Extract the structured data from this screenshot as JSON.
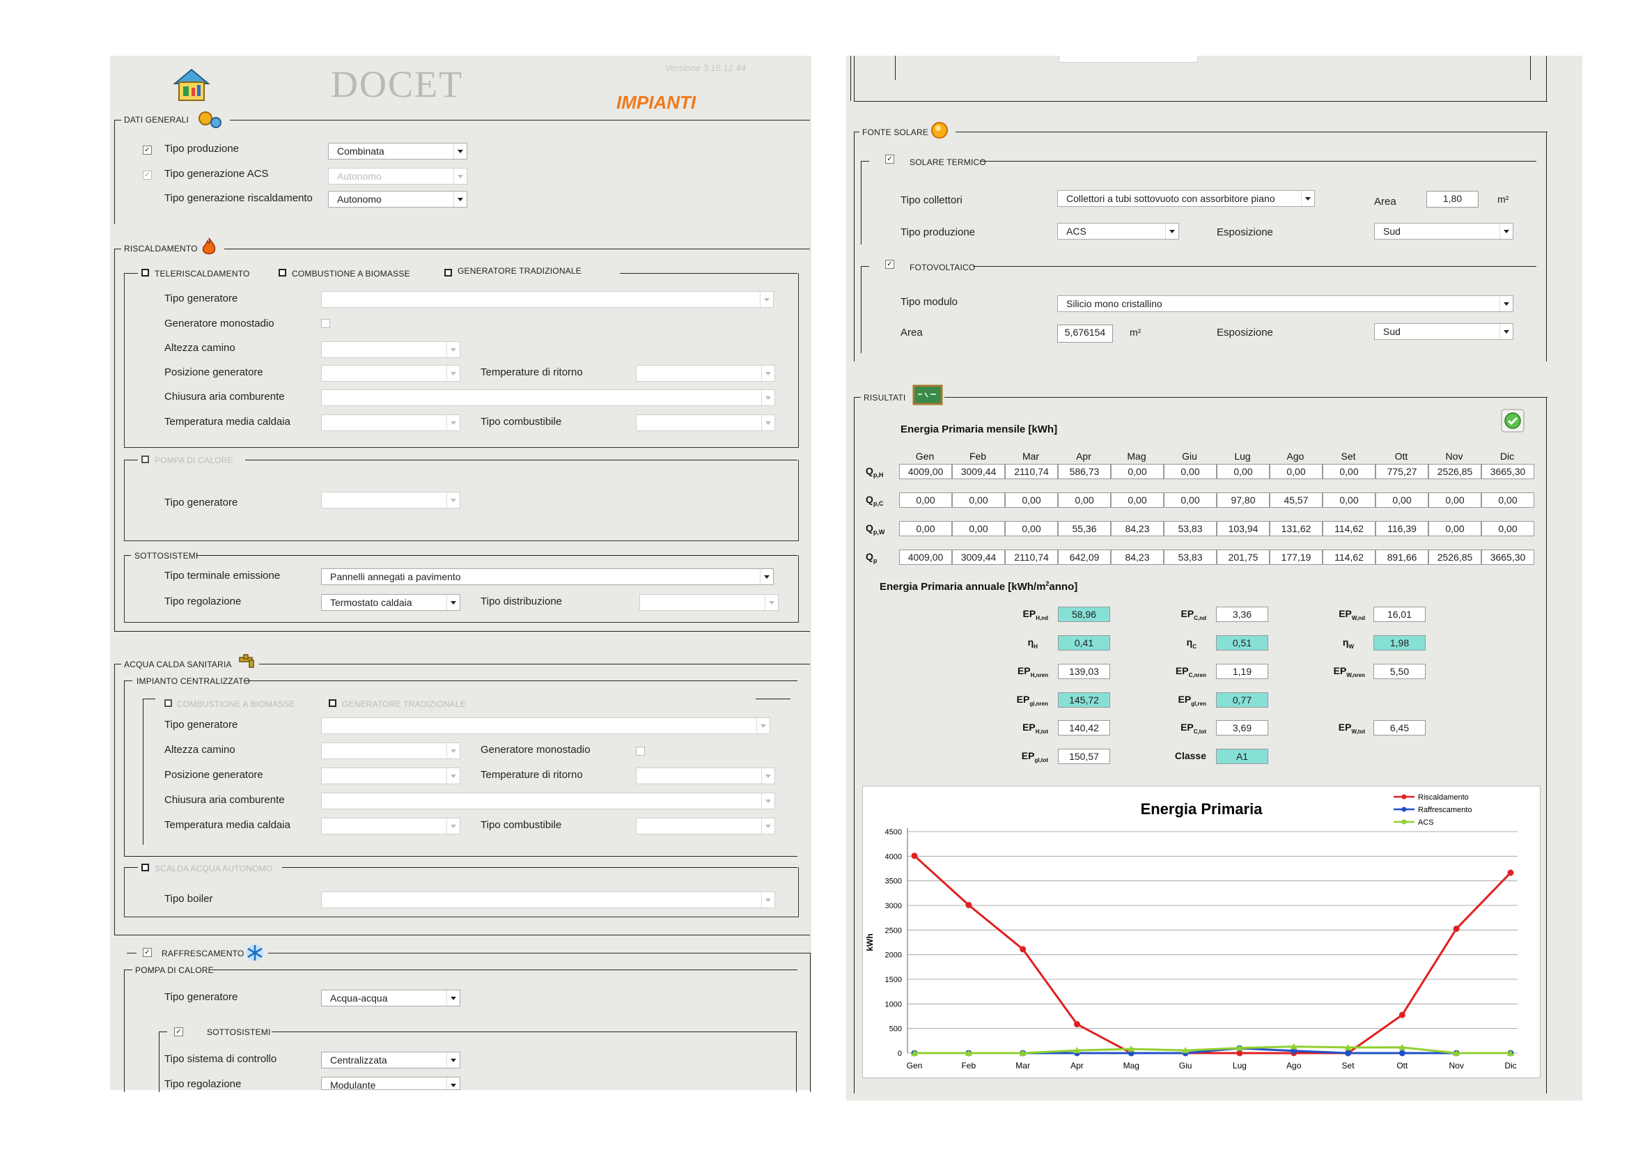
{
  "header": {
    "app_title": "DOCET",
    "version": "Versione 3.15.12.44",
    "section_title": "IMPIANTI"
  },
  "dati_generali": {
    "title": "DATI GENERALI",
    "tipo_produzione": {
      "label": "Tipo produzione",
      "value": "Combinata",
      "checked": true
    },
    "tipo_generazione_acs": {
      "label": "Tipo generazione ACS",
      "value": "Autonomo",
      "checked": true
    },
    "tipo_generazione_risc": {
      "label": "Tipo generazione riscaldamento",
      "value": "Autonomo"
    }
  },
  "riscaldamento": {
    "title": "RISCALDAMENTO",
    "tabs": [
      "TELERISCALDAMENTO",
      "COMBUSTIONE A BIOMASSE",
      "GENERATORE TRADIZIONALE"
    ],
    "tipo_generatore": "Tipo generatore",
    "generatore_monostadio": "Generatore monostadio",
    "altezza_camino": "Altezza camino",
    "posizione_generatore": "Posizione generatore",
    "temperature_ritorno": "Temperature di ritorno",
    "chiusura_aria": "Chiusura aria comburente",
    "temperatura_media": "Temperatura media caldaia",
    "tipo_combustibile": "Tipo combustibile",
    "pompa_calore": "POMPA DI CALORE",
    "pompa_tipo_generatore": "Tipo generatore",
    "sottosistemi": "SOTTOSISTEMI",
    "tipo_terminale": {
      "label": "Tipo terminale emissione",
      "value": "Pannelli annegati a pavimento"
    },
    "tipo_regolazione": {
      "label": "Tipo regolazione",
      "value": "Termostato caldaia"
    },
    "tipo_distribuzione": "Tipo distribuzione"
  },
  "acs": {
    "title": "ACQUA CALDA SANITARIA",
    "impianto": "IMPIANTO CENTRALIZZATO",
    "tabs": [
      "COMBUSTIONE A BIOMASSE",
      "GENERATORE TRADIZIONALE"
    ],
    "tipo_generatore": "Tipo generatore",
    "altezza_camino": "Altezza camino",
    "generatore_monostadio": "Generatore monostadio",
    "posizione_generatore": "Posizione generatore",
    "temperature_ritorno": "Temperature di ritorno",
    "chiusura_aria": "Chiusura aria comburente",
    "temperatura_media": "Temperatura media caldaia",
    "tipo_combustibile": "Tipo combustibile",
    "scalda_acqua": "SCALDA ACQUA AUTONOMO",
    "tipo_boiler": "Tipo boiler"
  },
  "raffrescamento": {
    "title": "RAFFRESCAMENTO",
    "pompa": "POMPA DI CALORE",
    "tipo_generatore": {
      "label": "Tipo generatore",
      "value": "Acqua-acqua"
    },
    "sottosistemi": "SOTTOSISTEMI",
    "tipo_sistema_controllo": {
      "label": "Tipo sistema di controllo",
      "value": "Centralizzata"
    },
    "tipo_regolazione": {
      "label": "Tipo regolazione",
      "value": "Modulante"
    }
  },
  "fonte_solare": {
    "title": "FONTE SOLARE",
    "solare_termico": "SOLARE TERMICO",
    "tipo_collettori": {
      "label": "Tipo collettori",
      "value": "Collettori a tubi sottovuoto con assorbitore piano"
    },
    "area_label": "Area",
    "area_value": "1,80",
    "unit_m2": "m²",
    "tipo_produzione": {
      "label": "Tipo produzione",
      "value": "ACS"
    },
    "esposizione_label": "Esposizione",
    "esposizione_value": "Sud",
    "fotovoltaico": "FOTOVOLTAICO",
    "tipo_modulo": {
      "label": "Tipo modulo",
      "value": "Silicio mono cristallino"
    },
    "pv_area_label": "Area",
    "pv_area_value": "5,676154",
    "pv_esposizione_label": "Esposizione",
    "pv_esposizione_value": "Sud"
  },
  "risultati": {
    "title": "RISULTATI",
    "mensile_title": "Energia Primaria mensile [kWh]",
    "months": [
      "Gen",
      "Feb",
      "Mar",
      "Apr",
      "Mag",
      "Giu",
      "Lug",
      "Ago",
      "Set",
      "Ott",
      "Nov",
      "Dic"
    ],
    "rows": [
      {
        "label": "Q",
        "sub": "p,H",
        "values": [
          "4009,00",
          "3009,44",
          "2110,74",
          "586,73",
          "0,00",
          "0,00",
          "0,00",
          "0,00",
          "0,00",
          "775,27",
          "2526,85",
          "3665,30"
        ]
      },
      {
        "label": "Q",
        "sub": "p,C",
        "values": [
          "0,00",
          "0,00",
          "0,00",
          "0,00",
          "0,00",
          "0,00",
          "97,80",
          "45,57",
          "0,00",
          "0,00",
          "0,00",
          "0,00"
        ]
      },
      {
        "label": "Q",
        "sub": "p,W",
        "values": [
          "0,00",
          "0,00",
          "0,00",
          "55,36",
          "84,23",
          "53,83",
          "103,94",
          "131,62",
          "114,62",
          "116,39",
          "0,00",
          "0,00"
        ]
      },
      {
        "label": "Q",
        "sub": "p",
        "values": [
          "4009,00",
          "3009,44",
          "2110,74",
          "642,09",
          "84,23",
          "53,83",
          "201,75",
          "177,19",
          "114,62",
          "891,66",
          "2526,85",
          "3665,30"
        ]
      }
    ],
    "annuale_title": "Energia Primaria annuale [kWh/m²anno]",
    "ep": {
      "EPH_nd": "58,96",
      "EPC_nd": "3,36",
      "EPW_nd": "16,01",
      "etaH": "0,41",
      "etaC": "0,51",
      "etaW": "1,98",
      "EPH_nren": "139,03",
      "EPC_nren": "1,19",
      "EPW_nren": "5,50",
      "EPgl_nren": "145,72",
      "EPgl_ren": "0,77",
      "EPH_tot": "140,42",
      "EPC_tot": "3,69",
      "EPW_tot": "6,45",
      "EPgl_tot": "150,57",
      "classe_label": "Classe",
      "classe": "A1"
    }
  },
  "chart_data": {
    "type": "line",
    "title": "Energia Primaria",
    "ylabel": "kWh",
    "ylim": [
      0,
      4500
    ],
    "yticks": [
      0,
      500,
      1000,
      1500,
      2000,
      2500,
      3000,
      3500,
      4000,
      4500
    ],
    "categories": [
      "Gen",
      "Feb",
      "Mar",
      "Apr",
      "Mag",
      "Giu",
      "Lug",
      "Ago",
      "Set",
      "Ott",
      "Nov",
      "Dic"
    ],
    "series": [
      {
        "name": "Riscaldamento",
        "color": "#e02020",
        "values": [
          4009,
          3009,
          2111,
          587,
          0,
          0,
          0,
          0,
          0,
          775,
          2527,
          3665
        ]
      },
      {
        "name": "Raffrescamento",
        "color": "#2050c8",
        "values": [
          0,
          0,
          0,
          0,
          0,
          0,
          98,
          46,
          0,
          0,
          0,
          0
        ]
      },
      {
        "name": "ACS",
        "color": "#90d030",
        "values": [
          0,
          0,
          0,
          55,
          84,
          54,
          104,
          132,
          115,
          116,
          0,
          0
        ]
      }
    ],
    "grid": true,
    "legend": "top-right"
  }
}
